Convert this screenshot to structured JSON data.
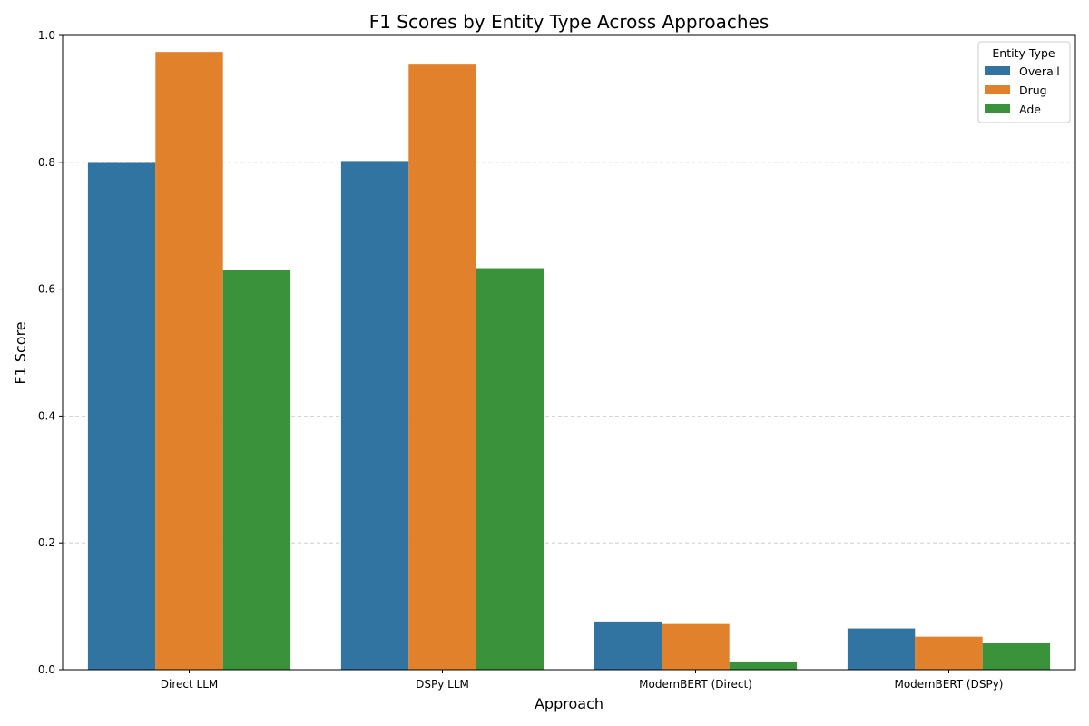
{
  "chart_data": {
    "type": "bar",
    "title": "F1 Scores by Entity Type Across Approaches",
    "xlabel": "Approach",
    "ylabel": "F1 Score",
    "ylim": [
      0,
      1
    ],
    "yticks": [
      "0.0",
      "0.2",
      "0.4",
      "0.6",
      "0.8",
      "1.0"
    ],
    "grid": true,
    "categories": [
      "Direct LLM",
      "DSPy LLM",
      "ModernBERT (Direct)",
      "ModernBERT (DSPy)"
    ],
    "series": [
      {
        "name": "Overall",
        "color": "#3274a1",
        "values": [
          0.799,
          0.802,
          0.076,
          0.065
        ]
      },
      {
        "name": "Drug",
        "color": "#e1812c",
        "values": [
          0.974,
          0.954,
          0.072,
          0.052
        ]
      },
      {
        "name": "Ade",
        "color": "#3a923a",
        "values": [
          0.63,
          0.633,
          0.013,
          0.042
        ]
      }
    ],
    "legend": {
      "title": "Entity Type",
      "position": "top-right"
    }
  }
}
